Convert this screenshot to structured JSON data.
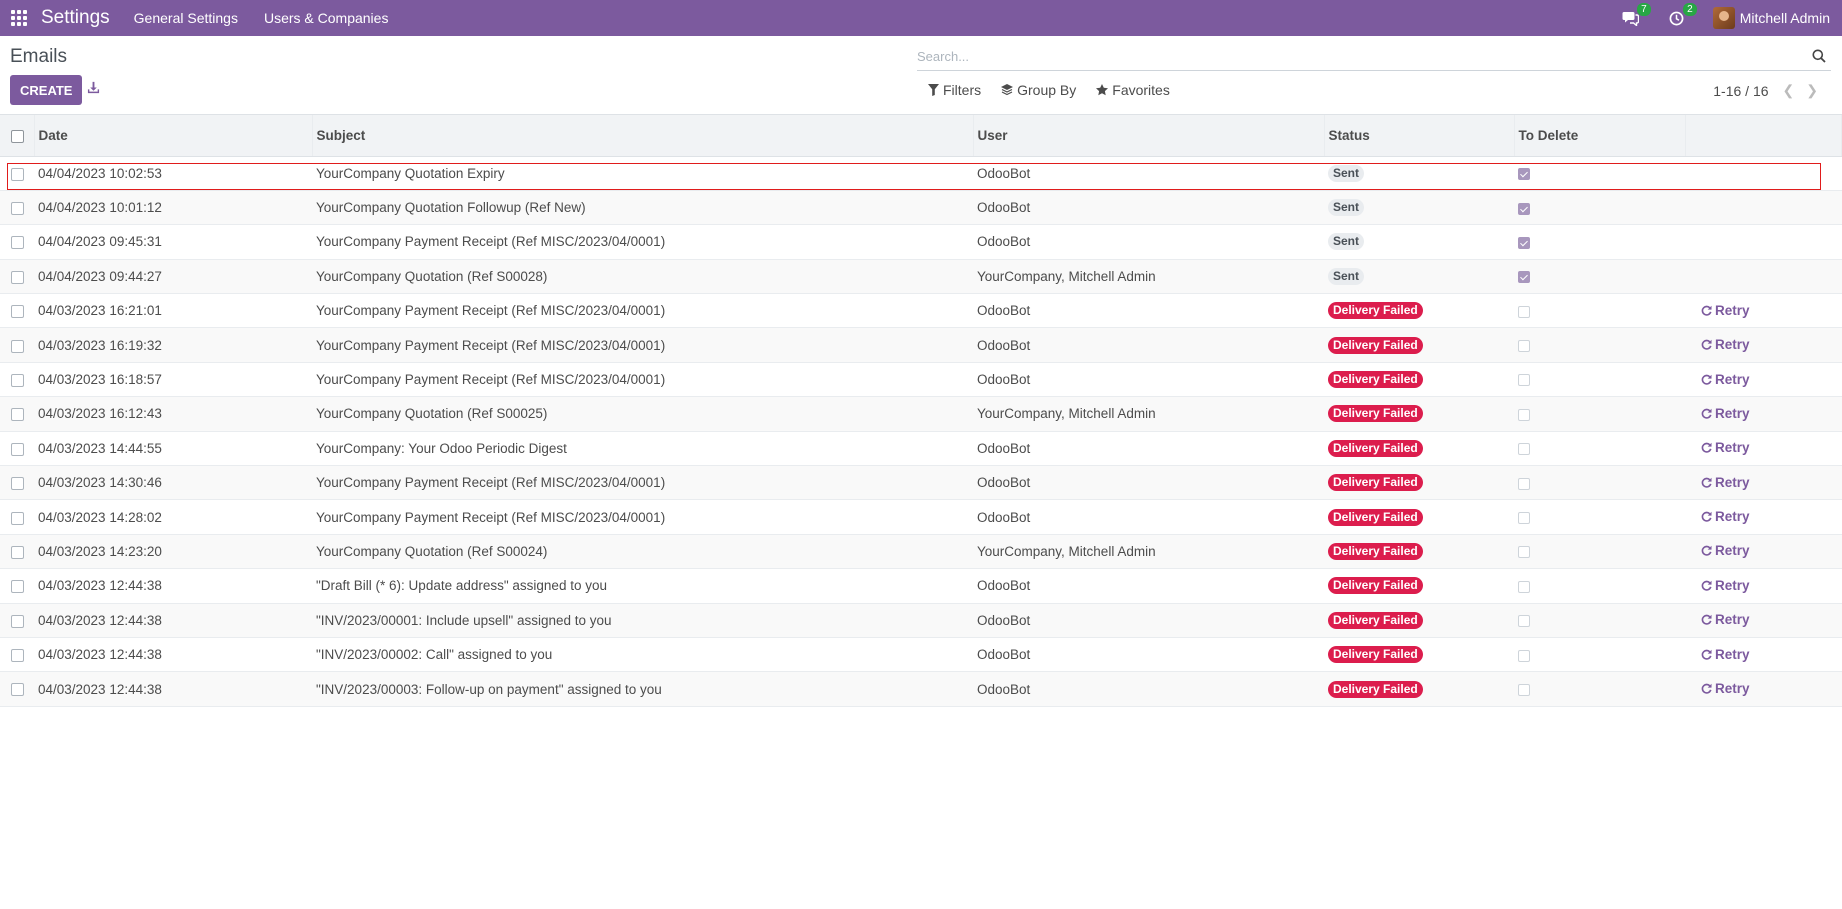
{
  "navbar": {
    "app_title": "Settings",
    "menu": [
      "General Settings",
      "Users & Companies"
    ],
    "messages_count": "7",
    "activities_count": "2",
    "user_name": "Mitchell Admin"
  },
  "control": {
    "breadcrumb": "Emails",
    "create_label": "CREATE",
    "search_placeholder": "Search...",
    "filters_label": "Filters",
    "group_by_label": "Group By",
    "favorites_label": "Favorites",
    "pager": "1-16 / 16"
  },
  "table": {
    "columns": [
      "Date",
      "Subject",
      "User",
      "Status",
      "To Delete"
    ],
    "retry_label": "Retry",
    "rows": [
      {
        "date": "04/04/2023 10:02:53",
        "subject": "YourCompany Quotation Expiry",
        "user": "OdooBot",
        "status": "Sent",
        "to_delete": true
      },
      {
        "date": "04/04/2023 10:01:12",
        "subject": "YourCompany Quotation Followup (Ref New)",
        "user": "OdooBot",
        "status": "Sent",
        "to_delete": true
      },
      {
        "date": "04/04/2023 09:45:31",
        "subject": "YourCompany Payment Receipt (Ref MISC/2023/04/0001)",
        "user": "OdooBot",
        "status": "Sent",
        "to_delete": true
      },
      {
        "date": "04/04/2023 09:44:27",
        "subject": "YourCompany Quotation (Ref S00028)",
        "user": "YourCompany, Mitchell Admin",
        "status": "Sent",
        "to_delete": true
      },
      {
        "date": "04/03/2023 16:21:01",
        "subject": "YourCompany Payment Receipt (Ref MISC/2023/04/0001)",
        "user": "OdooBot",
        "status": "Delivery Failed",
        "to_delete": false
      },
      {
        "date": "04/03/2023 16:19:32",
        "subject": "YourCompany Payment Receipt (Ref MISC/2023/04/0001)",
        "user": "OdooBot",
        "status": "Delivery Failed",
        "to_delete": false
      },
      {
        "date": "04/03/2023 16:18:57",
        "subject": "YourCompany Payment Receipt (Ref MISC/2023/04/0001)",
        "user": "OdooBot",
        "status": "Delivery Failed",
        "to_delete": false
      },
      {
        "date": "04/03/2023 16:12:43",
        "subject": "YourCompany Quotation (Ref S00025)",
        "user": "YourCompany, Mitchell Admin",
        "status": "Delivery Failed",
        "to_delete": false
      },
      {
        "date": "04/03/2023 14:44:55",
        "subject": "YourCompany: Your Odoo Periodic Digest",
        "user": "OdooBot",
        "status": "Delivery Failed",
        "to_delete": false
      },
      {
        "date": "04/03/2023 14:30:46",
        "subject": "YourCompany Payment Receipt (Ref MISC/2023/04/0001)",
        "user": "OdooBot",
        "status": "Delivery Failed",
        "to_delete": false
      },
      {
        "date": "04/03/2023 14:28:02",
        "subject": "YourCompany Payment Receipt (Ref MISC/2023/04/0001)",
        "user": "OdooBot",
        "status": "Delivery Failed",
        "to_delete": false
      },
      {
        "date": "04/03/2023 14:23:20",
        "subject": "YourCompany Quotation (Ref S00024)",
        "user": "YourCompany, Mitchell Admin",
        "status": "Delivery Failed",
        "to_delete": false
      },
      {
        "date": "04/03/2023 12:44:38",
        "subject": "\"Draft Bill (* 6): Update address\" assigned to you",
        "user": "OdooBot",
        "status": "Delivery Failed",
        "to_delete": false
      },
      {
        "date": "04/03/2023 12:44:38",
        "subject": "\"INV/2023/00001: Include upsell\" assigned to you",
        "user": "OdooBot",
        "status": "Delivery Failed",
        "to_delete": false
      },
      {
        "date": "04/03/2023 12:44:38",
        "subject": "\"INV/2023/00002: Call\" assigned to you",
        "user": "OdooBot",
        "status": "Delivery Failed",
        "to_delete": false
      },
      {
        "date": "04/03/2023 12:44:38",
        "subject": "\"INV/2023/00003: Follow-up on payment\" assigned to you",
        "user": "OdooBot",
        "status": "Delivery Failed",
        "to_delete": false
      }
    ]
  },
  "colors": {
    "brand": "#7c5a9e",
    "failed": "#dc1d4d",
    "badge": "#28a745"
  }
}
